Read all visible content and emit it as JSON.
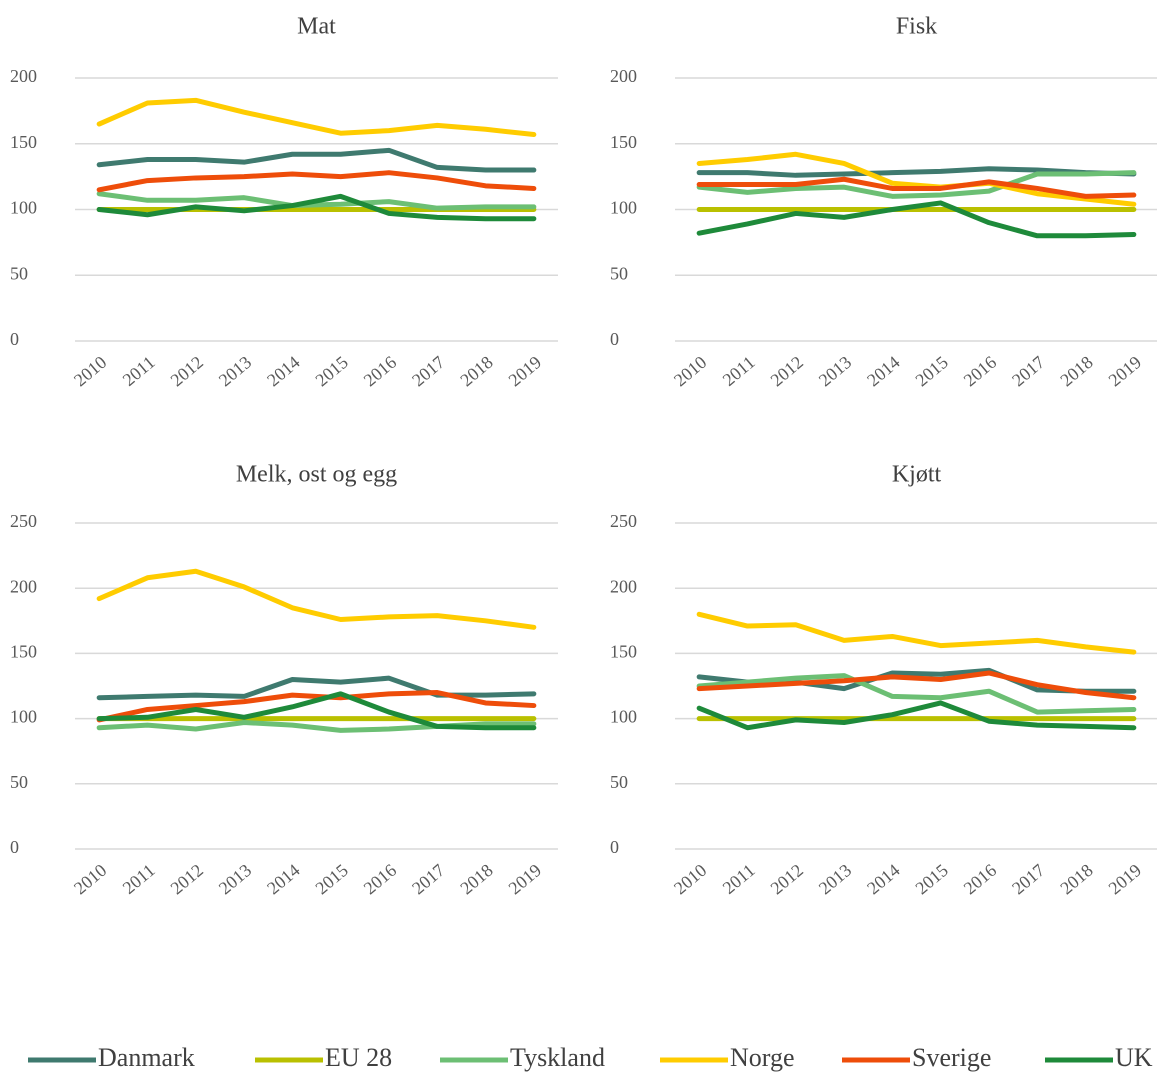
{
  "chart_data": [
    {
      "type": "line",
      "title": "Mat",
      "categories": [
        "2010",
        "2011",
        "2012",
        "2013",
        "2014",
        "2015",
        "2016",
        "2017",
        "2018",
        "2019"
      ],
      "ylim": [
        0,
        200
      ],
      "yticks": [
        0,
        50,
        100,
        150,
        200
      ],
      "grid": true,
      "series": [
        {
          "name": "Danmark",
          "color": "#3f7a6f",
          "values": [
            134,
            138,
            138,
            136,
            142,
            142,
            145,
            132,
            130,
            130
          ]
        },
        {
          "name": "EU 28",
          "color": "#b9c000",
          "values": [
            100,
            100,
            100,
            100,
            100,
            100,
            100,
            100,
            100,
            100
          ]
        },
        {
          "name": "Tyskland",
          "color": "#6cbf74",
          "values": [
            112,
            107,
            107,
            109,
            103,
            104,
            106,
            101,
            102,
            102
          ]
        },
        {
          "name": "Norge",
          "color": "#ffcc00",
          "values": [
            165,
            181,
            183,
            174,
            166,
            158,
            160,
            164,
            161,
            157
          ]
        },
        {
          "name": "Sverige",
          "color": "#ee4d0a",
          "values": [
            115,
            122,
            124,
            125,
            127,
            125,
            128,
            124,
            118,
            116
          ]
        },
        {
          "name": "UK",
          "color": "#1e8a3a",
          "values": [
            100,
            96,
            102,
            99,
            103,
            110,
            97,
            94,
            93,
            93
          ]
        }
      ]
    },
    {
      "type": "line",
      "title": "Fisk",
      "categories": [
        "2010",
        "2011",
        "2012",
        "2013",
        "2014",
        "2015",
        "2016",
        "2017",
        "2018",
        "2019"
      ],
      "ylim": [
        0,
        200
      ],
      "yticks": [
        0,
        50,
        100,
        150,
        200
      ],
      "grid": true,
      "series": [
        {
          "name": "Danmark",
          "color": "#3f7a6f",
          "values": [
            128,
            128,
            126,
            127,
            128,
            129,
            131,
            130,
            128,
            127
          ]
        },
        {
          "name": "EU 28",
          "color": "#b9c000",
          "values": [
            100,
            100,
            100,
            100,
            100,
            100,
            100,
            100,
            100,
            100
          ]
        },
        {
          "name": "Tyskland",
          "color": "#6cbf74",
          "values": [
            117,
            113,
            116,
            117,
            110,
            111,
            114,
            127,
            127,
            128
          ]
        },
        {
          "name": "Norge",
          "color": "#ffcc00",
          "values": [
            135,
            138,
            142,
            135,
            120,
            117,
            120,
            112,
            108,
            104
          ]
        },
        {
          "name": "Sverige",
          "color": "#ee4d0a",
          "values": [
            119,
            119,
            119,
            123,
            116,
            116,
            121,
            116,
            110,
            111
          ]
        },
        {
          "name": "UK",
          "color": "#1e8a3a",
          "values": [
            82,
            89,
            97,
            94,
            100,
            105,
            90,
            80,
            80,
            81
          ]
        }
      ]
    },
    {
      "type": "line",
      "title": "Melk, ost og egg",
      "categories": [
        "2010",
        "2011",
        "2012",
        "2013",
        "2014",
        "2015",
        "2016",
        "2017",
        "2018",
        "2019"
      ],
      "ylim": [
        0,
        250
      ],
      "yticks": [
        0,
        50,
        100,
        150,
        200,
        250
      ],
      "grid": true,
      "series": [
        {
          "name": "Danmark",
          "color": "#3f7a6f",
          "values": [
            116,
            117,
            118,
            117,
            130,
            128,
            131,
            118,
            118,
            119
          ]
        },
        {
          "name": "EU 28",
          "color": "#b9c000",
          "values": [
            100,
            100,
            100,
            100,
            100,
            100,
            100,
            100,
            100,
            100
          ]
        },
        {
          "name": "Tyskland",
          "color": "#6cbf74",
          "values": [
            93,
            95,
            92,
            97,
            95,
            91,
            92,
            94,
            96,
            96
          ]
        },
        {
          "name": "Norge",
          "color": "#ffcc00",
          "values": [
            192,
            208,
            213,
            201,
            185,
            176,
            178,
            179,
            175,
            170
          ]
        },
        {
          "name": "Sverige",
          "color": "#ee4d0a",
          "values": [
            99,
            107,
            110,
            113,
            118,
            116,
            119,
            120,
            112,
            110
          ]
        },
        {
          "name": "UK",
          "color": "#1e8a3a",
          "values": [
            100,
            101,
            107,
            101,
            109,
            119,
            105,
            94,
            93,
            93
          ]
        }
      ]
    },
    {
      "type": "line",
      "title": "Kjøtt",
      "categories": [
        "2010",
        "2011",
        "2012",
        "2013",
        "2014",
        "2015",
        "2016",
        "2017",
        "2018",
        "2019"
      ],
      "ylim": [
        0,
        250
      ],
      "yticks": [
        0,
        50,
        100,
        150,
        200,
        250
      ],
      "grid": true,
      "series": [
        {
          "name": "Danmark",
          "color": "#3f7a6f",
          "values": [
            132,
            128,
            128,
            123,
            135,
            134,
            137,
            122,
            121,
            121
          ]
        },
        {
          "name": "EU 28",
          "color": "#b9c000",
          "values": [
            100,
            100,
            100,
            100,
            100,
            100,
            100,
            100,
            100,
            100
          ]
        },
        {
          "name": "Tyskland",
          "color": "#6cbf74",
          "values": [
            125,
            128,
            131,
            133,
            117,
            116,
            121,
            105,
            106,
            107
          ]
        },
        {
          "name": "Norge",
          "color": "#ffcc00",
          "values": [
            180,
            171,
            172,
            160,
            163,
            156,
            158,
            160,
            155,
            151
          ]
        },
        {
          "name": "Sverige",
          "color": "#ee4d0a",
          "values": [
            123,
            125,
            127,
            129,
            132,
            130,
            135,
            126,
            120,
            116
          ]
        },
        {
          "name": "UK",
          "color": "#1e8a3a",
          "values": [
            108,
            93,
            99,
            97,
            103,
            112,
            98,
            95,
            94,
            93
          ]
        }
      ]
    }
  ]
}
